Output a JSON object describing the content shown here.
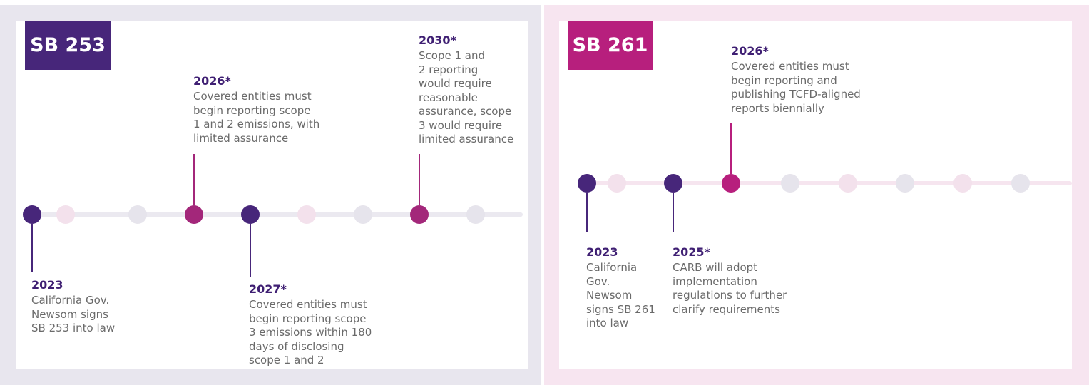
{
  "colors": {
    "purple": "#47267a",
    "magenta": "#b71f7d",
    "light_pink": "#f3e1ec",
    "light_gray": "#e6e4ec",
    "year_text": "#3f1f73",
    "desc_text": "#6a6a6a"
  },
  "sb253": {
    "title": "SB 253",
    "events": [
      {
        "year": "2023",
        "description": "California Gov.\nNewsom signs\nSB 253 into law"
      },
      {
        "year": "2026*",
        "description": "Covered entities must\nbegin reporting scope\n1 and 2 emissions, with\nlimited assurance"
      },
      {
        "year": "2027*",
        "description": "Covered entities must\nbegin reporting scope\n3 emissions within 180\ndays of disclosing\nscope 1 and 2"
      },
      {
        "year": "2030*",
        "description": "Scope 1 and\n2 reporting\nwould require\nreasonable\nassurance, scope\n3 would require\nlimited assurance"
      }
    ]
  },
  "sb261": {
    "title": "SB 261",
    "events": [
      {
        "year": "2023",
        "description": "California\nGov.\nNewsom\nsigns SB 261\ninto law"
      },
      {
        "year": "2025*",
        "description": "CARB will adopt\nimplementation\nregulations to further\nclarify requirements"
      },
      {
        "year": "2026*",
        "description": "Covered entities must\nbegin reporting and\npublishing TCFD-aligned\nreports biennially"
      }
    ]
  }
}
